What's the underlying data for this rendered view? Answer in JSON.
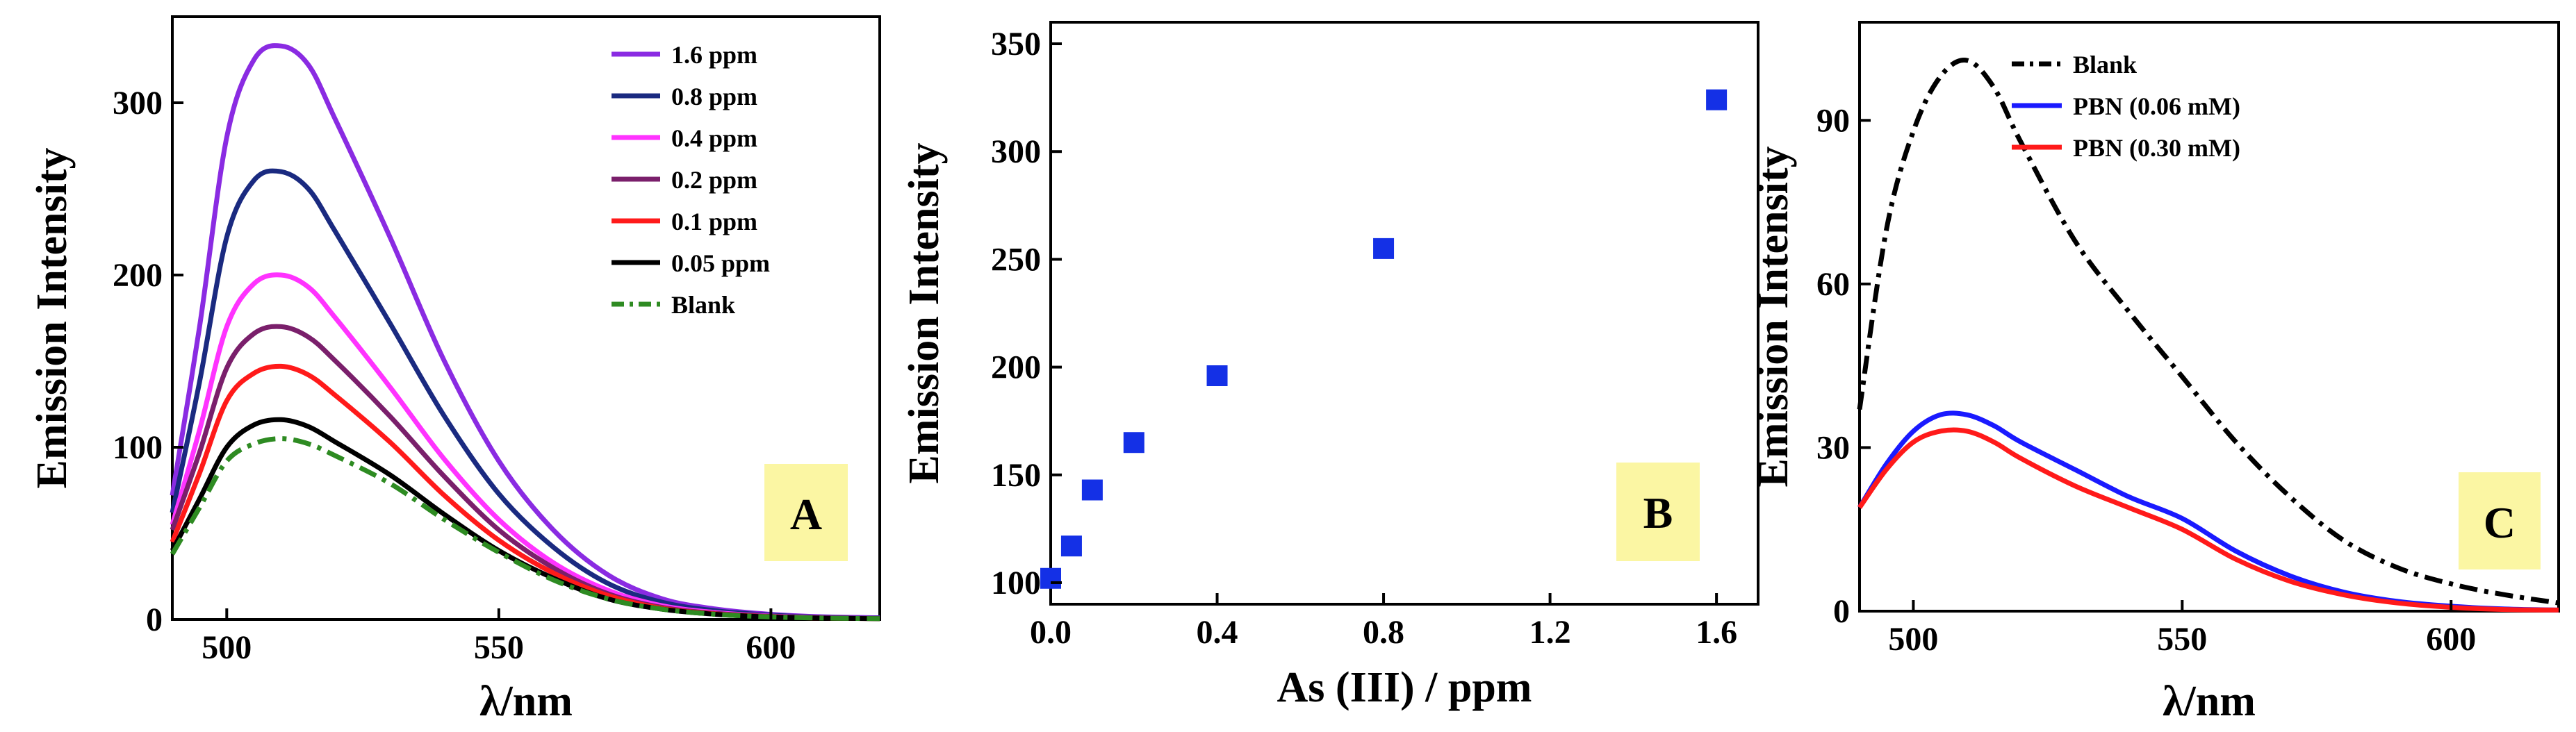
{
  "colors": {
    "badge_fill": "#fbf6a3",
    "marker": "#1430e6"
  },
  "panels": [
    {
      "badge": "A",
      "xlabel": "λ/nm",
      "ylabel": "Emission Intensity",
      "legend": [
        {
          "label": "1.6 ppm",
          "color": "#8a2be2",
          "dash": "solid"
        },
        {
          "label": "0.8 ppm",
          "color": "#1a2a80",
          "dash": "solid"
        },
        {
          "label": "0.4 ppm",
          "color": "#ff33ff",
          "dash": "solid"
        },
        {
          "label": "0.2 ppm",
          "color": "#7a1f6b",
          "dash": "solid"
        },
        {
          "label": "0.1 ppm",
          "color": "#ff1a1a",
          "dash": "solid"
        },
        {
          "label": "0.05 ppm",
          "color": "#000000",
          "dash": "solid"
        },
        {
          "label": "Blank",
          "color": "#2e8b22",
          "dash": "dashdot"
        }
      ]
    },
    {
      "badge": "B",
      "xlabel": "As (III) / ppm",
      "ylabel": "Emission Intensity",
      "legend": []
    },
    {
      "badge": "C",
      "xlabel": "λ/nm",
      "ylabel": "Emission Intensity",
      "legend": [
        {
          "label": "Blank",
          "color": "#000000",
          "dash": "dashdot"
        },
        {
          "label": "PBN (0.06 mM)",
          "color": "#1a1aff",
          "dash": "solid"
        },
        {
          "label": "PBN (0.30 mM)",
          "color": "#ff1a1a",
          "dash": "solid"
        }
      ]
    }
  ],
  "chart_data": [
    {
      "type": "line",
      "xlabel": "λ/nm",
      "ylabel": "Emission Intensity",
      "xlim": [
        490,
        620
      ],
      "ylim": [
        0,
        350
      ],
      "xticks": [
        500,
        550,
        600
      ],
      "yticks": [
        0,
        100,
        200,
        300
      ],
      "x": [
        490,
        495,
        500,
        505,
        510,
        515,
        520,
        530,
        540,
        550,
        560,
        570,
        580,
        590,
        600,
        610,
        620
      ],
      "series": [
        {
          "name": "1.6 ppm",
          "values": [
            72,
            170,
            280,
            325,
            333,
            322,
            290,
            222,
            150,
            92,
            52,
            26,
            12,
            6,
            3,
            1.5,
            1
          ]
        },
        {
          "name": "0.8 ppm",
          "values": [
            62,
            138,
            222,
            255,
            260,
            250,
            225,
            172,
            118,
            73,
            42,
            21,
            10,
            5,
            2.5,
            1.2,
            0.8
          ]
        },
        {
          "name": "0.4 ppm",
          "values": [
            55,
            110,
            170,
            195,
            200,
            193,
            175,
            135,
            93,
            58,
            33,
            17,
            8,
            4,
            2,
            1,
            0.6
          ]
        },
        {
          "name": "0.2 ppm",
          "values": [
            52,
            97,
            146,
            166,
            170,
            164,
            150,
            118,
            83,
            52,
            30,
            15,
            7,
            3.5,
            1.8,
            0.9,
            0.5
          ]
        },
        {
          "name": "0.1 ppm",
          "values": [
            45,
            85,
            127,
            143,
            147,
            142,
            130,
            103,
            72,
            46,
            27,
            14,
            6.5,
            3.2,
            1.6,
            0.8,
            0.5
          ]
        },
        {
          "name": "0.05 ppm",
          "values": [
            40,
            70,
            100,
            113,
            116,
            112,
            103,
            84,
            61,
            40,
            24,
            12,
            6,
            3,
            1.5,
            0.8,
            0.5
          ]
        },
        {
          "name": "Blank",
          "values": [
            38,
            65,
            92,
            102,
            105,
            102,
            95,
            79,
            58,
            39,
            23,
            12,
            6,
            3,
            1.5,
            0.8,
            0.5
          ]
        }
      ]
    },
    {
      "type": "scatter",
      "xlabel": "As (III) / ppm",
      "ylabel": "Emission Intensity",
      "xlim": [
        0,
        1.7
      ],
      "ylim": [
        90,
        360
      ],
      "xticks": [
        "0.0",
        "0.4",
        "0.8",
        "1.2",
        "1.6"
      ],
      "yticks": [
        100,
        150,
        200,
        250,
        300,
        350
      ],
      "x": [
        0,
        0.05,
        0.1,
        0.2,
        0.4,
        0.8,
        1.6
      ],
      "series": [
        {
          "values": [
            102,
            117,
            143,
            165,
            196,
            255,
            324
          ]
        }
      ]
    },
    {
      "type": "line",
      "xlabel": "λ/nm",
      "ylabel": "Emission Intensity",
      "xlim": [
        490,
        620
      ],
      "ylim": [
        0,
        108
      ],
      "xticks": [
        500,
        550,
        600
      ],
      "yticks": [
        0,
        30,
        60,
        90
      ],
      "x": [
        490,
        495,
        500,
        505,
        510,
        515,
        520,
        530,
        540,
        550,
        560,
        570,
        580,
        590,
        600,
        610,
        620
      ],
      "series": [
        {
          "name": "Blank",
          "values": [
            37,
            70,
            88,
            98,
            101,
            96,
            86,
            68,
            55,
            43,
            31,
            21,
            13,
            8,
            5,
            3,
            1.5
          ]
        },
        {
          "name": "PBN (0.06 mM)",
          "values": [
            19,
            27,
            33,
            36,
            36,
            34,
            31,
            26,
            21,
            17,
            11,
            6.5,
            3.5,
            1.8,
            0.9,
            0.4,
            0.2
          ]
        },
        {
          "name": "PBN (0.30 mM)",
          "values": [
            19,
            26,
            31,
            33,
            33,
            31,
            28,
            23,
            19,
            15,
            9.5,
            5.5,
            3,
            1.5,
            0.7,
            0.3,
            0.2
          ]
        }
      ]
    }
  ]
}
